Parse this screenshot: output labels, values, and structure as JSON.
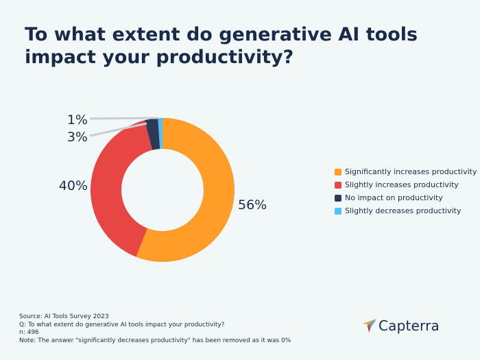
{
  "title": "To what extent do generative AI tools impact your productivity?",
  "chart_data": {
    "type": "pie",
    "variant": "donut",
    "title": "To what extent do generative AI tools impact your productivity?",
    "slices": [
      {
        "label": "Significantly increases productivity",
        "value": 56,
        "display": "56%",
        "color": "#ff9d28"
      },
      {
        "label": "Slightly increases productivity",
        "value": 40,
        "display": "40%",
        "color": "#e84545"
      },
      {
        "label": "No impact on productivity",
        "value": 3,
        "display": "3%",
        "color": "#2b3a55"
      },
      {
        "label": "Slightly decreases productivity",
        "value": 1,
        "display": "1%",
        "color": "#4fc3f7"
      }
    ],
    "legend_position": "right",
    "leader_line_color": "#c8cfd3"
  },
  "footer": {
    "source": "Source: AI Tools Survey 2023",
    "question": "Q: To what extent do generative AI tools impact your productivity?",
    "n": "n: 496",
    "note": "Note: The answer \"significantly decreases productivity\" has been removed as it was 0%"
  },
  "logo": {
    "text": "Capterra",
    "icon": "capterra-arrow-icon",
    "colors": [
      "#ff9d28",
      "#44a7dd",
      "#e84545",
      "#1a2b49"
    ]
  }
}
